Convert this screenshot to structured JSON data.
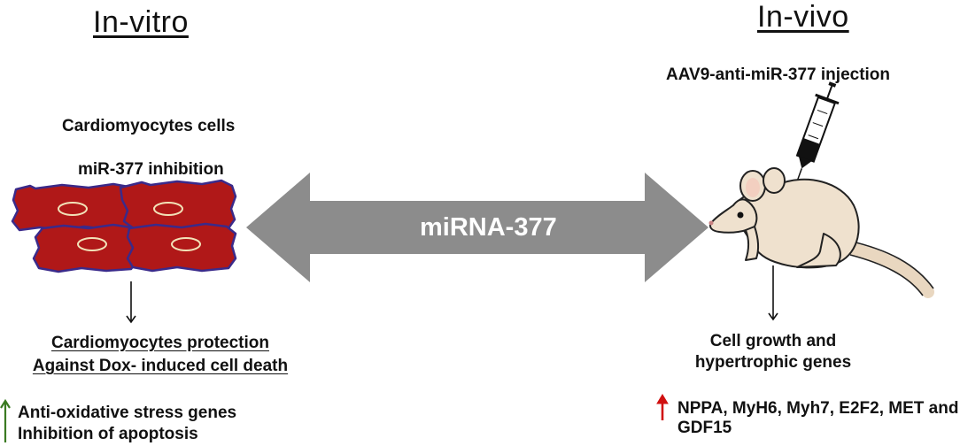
{
  "in_vitro": {
    "heading": "In-vitro",
    "cell_label": "Cardiomyocytes cells",
    "treatment_label": "miR-377 inhibition",
    "outcome_line1": "Cardiomyocytes protection",
    "outcome_line2": "Against Dox- induced cell death",
    "effect_line1": "Anti-oxidative stress genes",
    "effect_line2": "Inhibition of apoptosis",
    "up_arrow_color": "#3a7a22"
  },
  "center": {
    "arrow_label": "miRNA-377",
    "arrow_color": "#8c8c8c"
  },
  "in_vivo": {
    "heading": "In-vivo",
    "injection_label": "AAV9-anti-miR-377 injection",
    "outcome_line1": "Cell growth and",
    "outcome_line2": "hypertrophic genes",
    "genes_text": "NPPA, MyH6, Myh7, E2F2, MET and GDF15",
    "up_arrow_color": "#d01010"
  },
  "icons": {
    "cells": "cardiomyocyte-cluster-icon",
    "mouse": "mouse-icon",
    "syringe": "syringe-icon"
  },
  "colors": {
    "cell_fill": "#b01818",
    "cell_outline": "#3a2a8a",
    "mouse_fill": "#efe1ce"
  }
}
